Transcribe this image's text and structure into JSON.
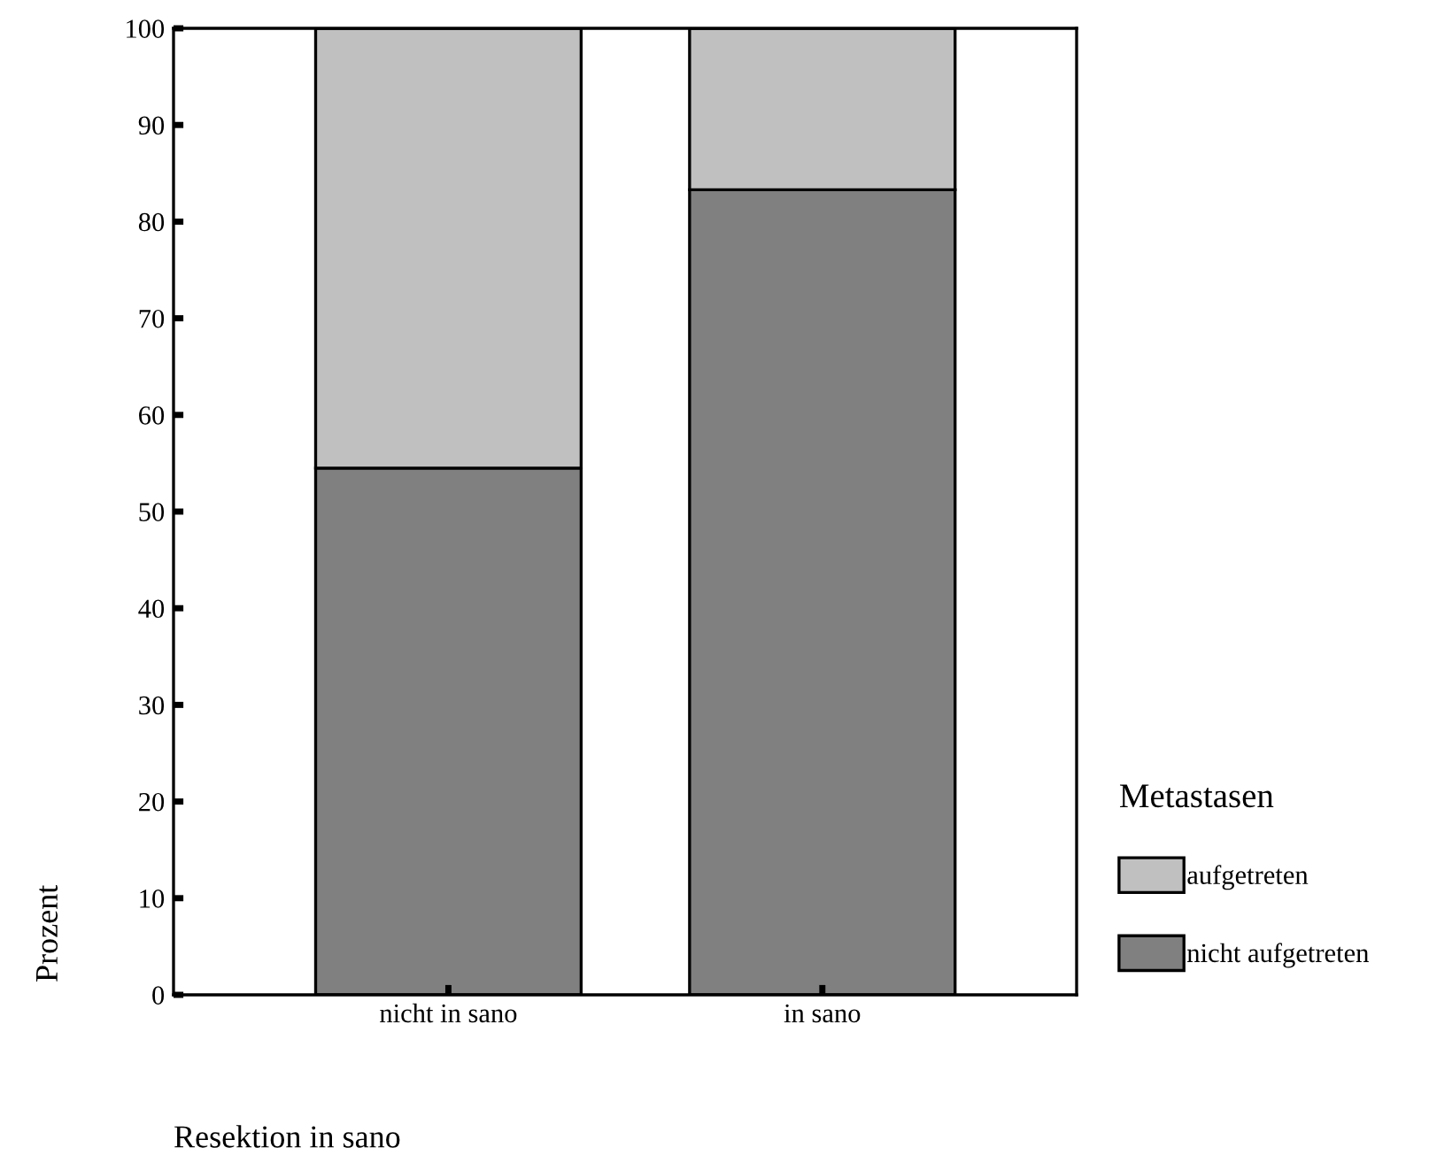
{
  "chart_data": {
    "type": "bar",
    "stacked": true,
    "categories": [
      "nicht in sano",
      "in sano"
    ],
    "series": [
      {
        "name": "nicht aufgetreten",
        "color": "#808080",
        "values": [
          54.5,
          83.3
        ]
      },
      {
        "name": "aufgetreten",
        "color": "#c0c0c0",
        "values": [
          45.5,
          16.7
        ]
      }
    ],
    "ylim": [
      0,
      100
    ],
    "yticks": [
      0,
      10,
      20,
      30,
      40,
      50,
      60,
      70,
      80,
      90,
      100
    ],
    "xlabel": "Resektion in sano",
    "ylabel": "Prozent",
    "legend_title": "Metastasen",
    "legend": "right",
    "grid": false
  }
}
